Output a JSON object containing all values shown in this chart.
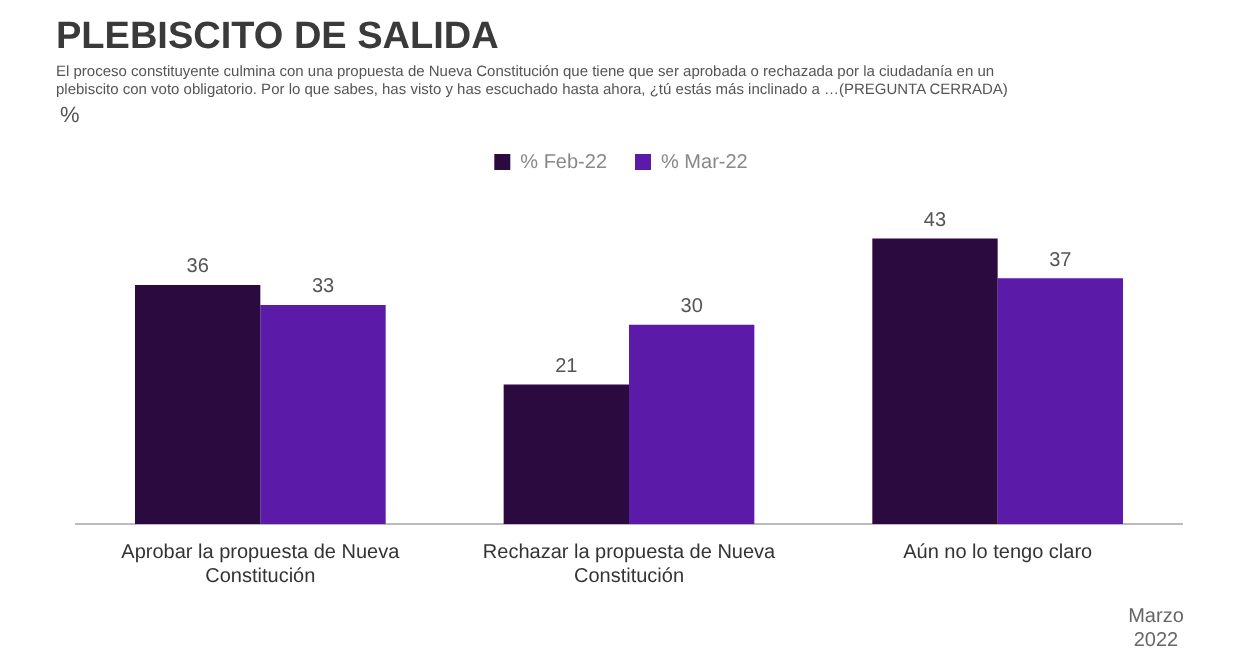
{
  "chart_data": {
    "type": "bar",
    "title": "PLEBISCITO DE SALIDA",
    "subtitle": "El proceso constituyente culmina con una propuesta de Nueva Constitución que tiene que ser aprobada o rechazada por la ciudadanía en un plebiscito con voto obligatorio. Por lo que sabes, has visto y has escuchado hasta ahora, ¿tú estás más inclinado a …(PREGUNTA CERRADA)",
    "categories": [
      "Aprobar la propuesta de Nueva Constitución",
      "Rechazar la propuesta de Nueva Constitución",
      "Aún no lo tengo claro"
    ],
    "series": [
      {
        "name": "% Feb-22",
        "color": "#2a0a3f",
        "values": [
          36,
          21,
          43
        ]
      },
      {
        "name": "% Mar-22",
        "color": "#5c1aa8",
        "values": [
          33,
          30,
          37
        ]
      }
    ],
    "data_labels": true,
    "legend": "top",
    "grid": false,
    "annotations": [
      "%",
      "Marzo 2022"
    ]
  }
}
